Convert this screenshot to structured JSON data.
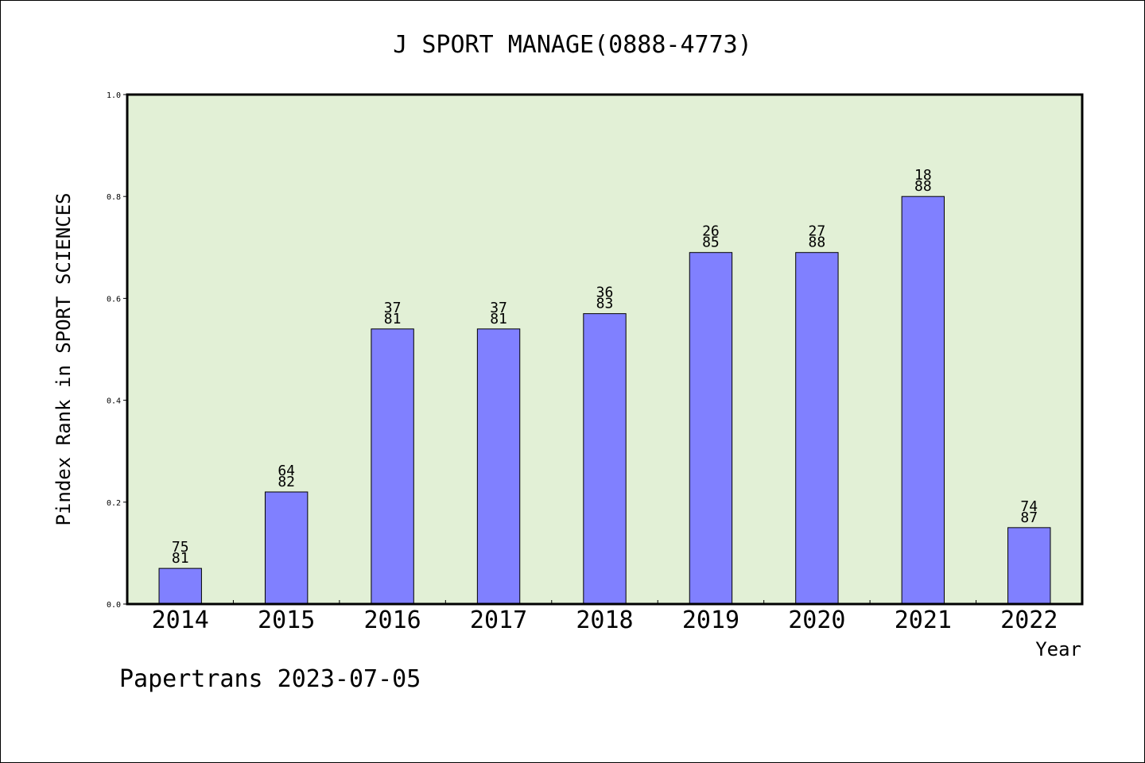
{
  "chart_data": {
    "type": "bar",
    "title": "J SPORT MANAGE(0888-4773)",
    "xlabel": "Year",
    "ylabel": "Pindex Rank in SPORT SCIENCES",
    "categories": [
      "2014",
      "2015",
      "2016",
      "2017",
      "2018",
      "2019",
      "2020",
      "2021",
      "2022"
    ],
    "values": [
      0.07,
      0.22,
      0.54,
      0.54,
      0.57,
      0.69,
      0.69,
      0.8,
      0.15
    ],
    "bar_labels": [
      [
        "75",
        "81"
      ],
      [
        "64",
        "82"
      ],
      [
        "37",
        "81"
      ],
      [
        "37",
        "81"
      ],
      [
        "36",
        "83"
      ],
      [
        "26",
        "85"
      ],
      [
        "27",
        "88"
      ],
      [
        "18",
        "88"
      ],
      [
        "74",
        "87"
      ]
    ],
    "ylim": [
      0.0,
      1.0
    ],
    "yticks": [
      "0.0",
      "0.2",
      "0.4",
      "0.6",
      "0.8",
      "1.0"
    ],
    "grid": false,
    "colors": {
      "plot_background": "#e2f0d6",
      "bar_fill": "#8080ff",
      "bar_stroke": "#000000"
    }
  },
  "footer": "Papertrans 2023-07-05"
}
